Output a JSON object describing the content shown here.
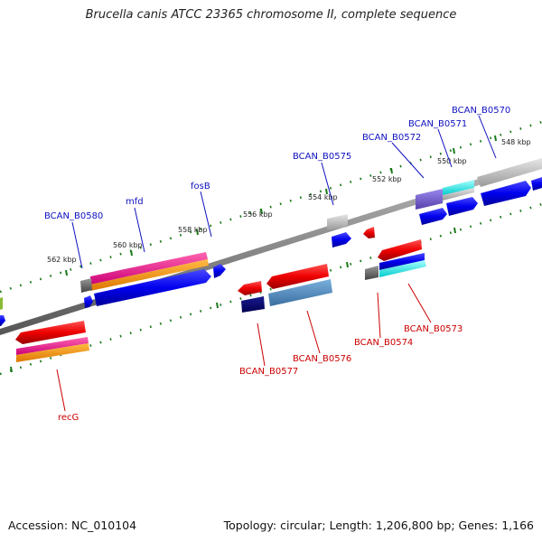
{
  "header": {
    "title": "Brucella canis ATCC 23365 chromosome II, complete sequence"
  },
  "footer": {
    "accession": "Accession: NC_010104",
    "summary": "Topology: circular; Length: 1,206,800 bp; Genes: 1,166"
  },
  "colors": {
    "forward_label": "#1010c0",
    "reverse_label": "#cc0000",
    "tick": "#1a7a1a",
    "backbone": "#808080"
  },
  "ticks": [
    "548 kbp",
    "550 kbp",
    "552 kbp",
    "554 kbp",
    "556 kbp",
    "558 kbp",
    "560 kbp",
    "562 kbp"
  ],
  "genes_forward": [
    "BCAN_B0570",
    "BCAN_B0571",
    "BCAN_B0572",
    "BCAN_B0575",
    "fosB",
    "mfd",
    "BCAN_B0580"
  ],
  "genes_reverse": [
    "BCAN_B0573",
    "BCAN_B0574",
    "BCAN_B0576",
    "BCAN_B0577",
    "recG"
  ]
}
